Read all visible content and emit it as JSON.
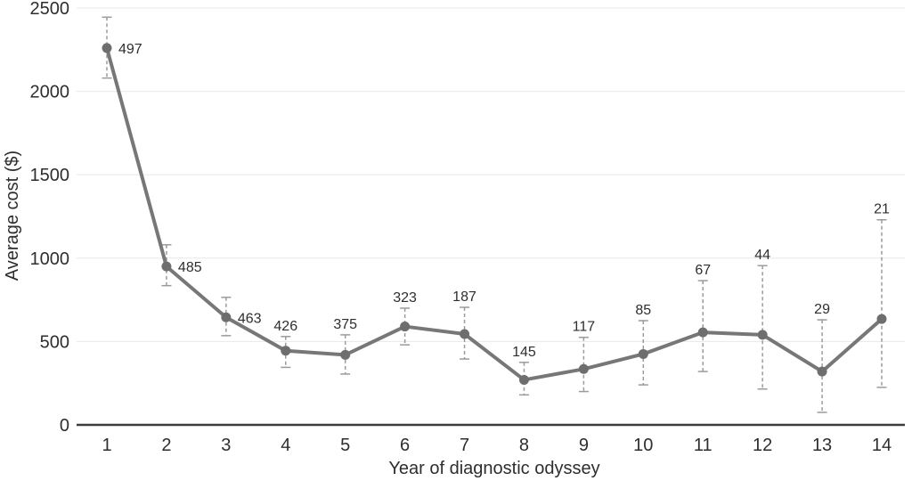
{
  "chart_data": {
    "type": "line",
    "title": "",
    "xlabel": "Year of diagnostic odyssey",
    "ylabel": "Average cost ($)",
    "x": [
      1,
      2,
      3,
      4,
      5,
      6,
      7,
      8,
      9,
      10,
      11,
      12,
      13,
      14
    ],
    "series": [
      {
        "name": "Average cost",
        "values": [
          2260,
          950,
          645,
          445,
          420,
          590,
          545,
          270,
          335,
          425,
          555,
          540,
          320,
          635
        ],
        "error_upper": [
          2445,
          1080,
          765,
          530,
          540,
          700,
          705,
          375,
          525,
          625,
          865,
          955,
          630,
          1230
        ],
        "error_lower": [
          2080,
          835,
          535,
          345,
          305,
          480,
          395,
          180,
          200,
          240,
          320,
          215,
          75,
          225
        ],
        "point_labels": [
          "497",
          "485",
          "463",
          "426",
          "375",
          "323",
          "187",
          "145",
          "117",
          "85",
          "67",
          "44",
          "29",
          "21"
        ],
        "label_placement": [
          "right",
          "right",
          "right",
          "top",
          "top",
          "top",
          "top",
          "top",
          "top",
          "top",
          "top",
          "top",
          "top",
          "top"
        ]
      }
    ],
    "ylim": [
      0,
      2500
    ],
    "yticks": [
      0,
      500,
      1000,
      1500,
      2000,
      2500
    ],
    "grid": true,
    "legend": "none",
    "colors": {
      "line": "#777777",
      "marker": "#6e6e6e",
      "error_bar": "#9b9b9b",
      "gridline": "#e8e8e8",
      "axis_line": "#3c3c3c",
      "text": "#2e2e2e",
      "background": "#ffffff"
    }
  }
}
